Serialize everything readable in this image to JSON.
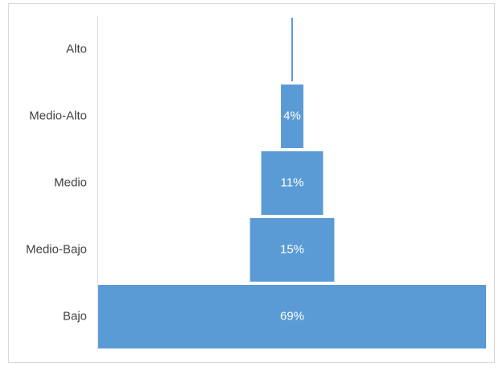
{
  "chart_data": {
    "type": "funnel",
    "categories": [
      "Alto",
      "Medio-Alto",
      "Medio",
      "Medio-Bajo",
      "Bajo"
    ],
    "values": [
      0.3,
      4,
      11,
      15,
      69
    ],
    "value_labels": [
      null,
      "4%",
      "11%",
      "15%",
      "69%"
    ],
    "color": "#5b9bd5"
  }
}
